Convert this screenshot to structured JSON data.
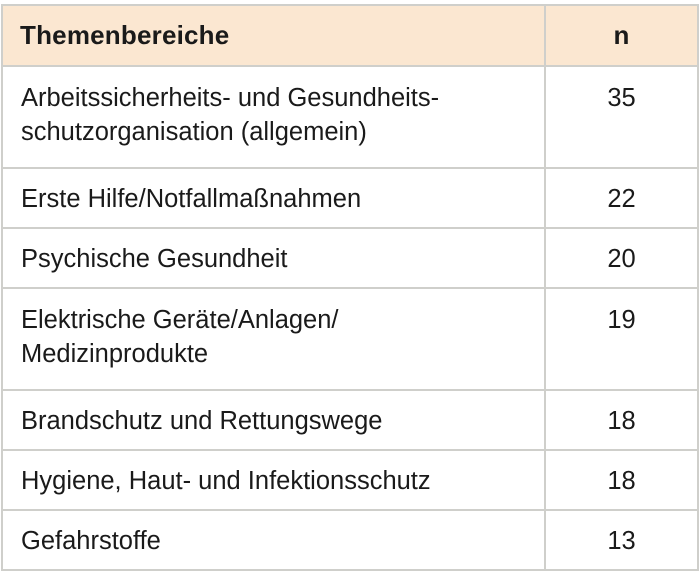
{
  "table": {
    "headers": {
      "topic": "Themenbereiche",
      "n": "n"
    },
    "rows": [
      {
        "line1": "Arbeitssicherheits- und Gesundheits-",
        "line2": "schutzorganisation (allgemein)",
        "n": "35"
      },
      {
        "line1": "Erste Hilfe/Notfallmaßnahmen",
        "line2": "",
        "n": "22"
      },
      {
        "line1": "Psychische Gesundheit",
        "line2": "",
        "n": "20"
      },
      {
        "line1": "Elektrische Geräte/Anlagen/",
        "line2": "Medizinprodukte",
        "n": "19"
      },
      {
        "line1": "Brandschutz und Rettungswege",
        "line2": "",
        "n": "18"
      },
      {
        "line1": "Hygiene, Haut- und Infektionsschutz",
        "line2": "",
        "n": "18"
      },
      {
        "line1": "Gefahrstoffe",
        "line2": "",
        "n": "13"
      }
    ]
  },
  "colors": {
    "header_background": "#fbe7d1",
    "border": "#cfcfcb",
    "text": "#1a1a1a"
  }
}
